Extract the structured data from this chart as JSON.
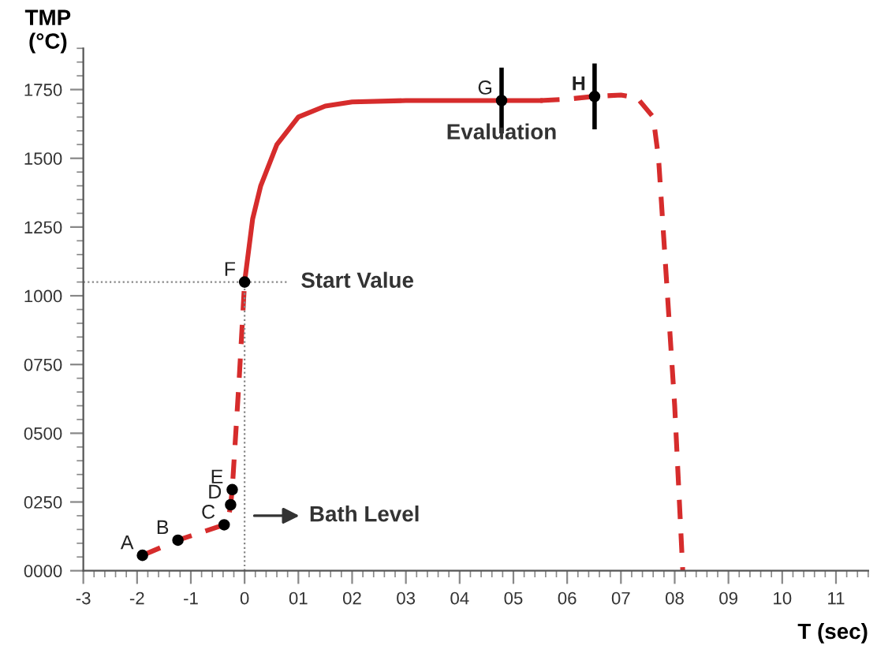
{
  "chart_data": {
    "type": "line",
    "xlabel": "T (sec)",
    "ylabel": "TMP\n(°C)",
    "xlim": [
      -3,
      11.6
    ],
    "ylim": [
      0,
      1900
    ],
    "xticks": [
      -3,
      -2,
      -1,
      0,
      {
        "value": 1,
        "label": "01"
      },
      {
        "value": 2,
        "label": "02"
      },
      {
        "value": 3,
        "label": "03"
      },
      {
        "value": 4,
        "label": "04"
      },
      {
        "value": 5,
        "label": "05"
      },
      {
        "value": 6,
        "label": "06"
      },
      {
        "value": 7,
        "label": "07"
      },
      {
        "value": 8,
        "label": "08"
      },
      {
        "value": 9,
        "label": "09"
      },
      10,
      11
    ],
    "yticks": [
      {
        "value": 0,
        "label": "0000"
      },
      {
        "value": 250,
        "label": "0250"
      },
      {
        "value": 500,
        "label": "0500"
      },
      {
        "value": 750,
        "label": "0750"
      },
      1000,
      1250,
      1500,
      1750
    ],
    "grid": false,
    "series": [
      {
        "color": "#d62c2c",
        "line_style": "dashed",
        "marker": "none",
        "x": [
          -1.9,
          -1.24,
          -0.38,
          -0.3,
          -0.26,
          -0.23,
          -0.1,
          0
        ],
        "values": [
          56,
          111,
          167,
          190,
          240,
          295,
          700,
          1050
        ]
      },
      {
        "color": "#d62c2c",
        "line_style": "solid",
        "marker": "none",
        "x": [
          0,
          0.15,
          0.3,
          0.6,
          1,
          1.5,
          2,
          3,
          4,
          5,
          5.5
        ],
        "values": [
          1050,
          1280,
          1400,
          1550,
          1650,
          1690,
          1705,
          1710,
          1710,
          1710,
          1710
        ]
      },
      {
        "color": "#d62c2c",
        "line_style": "dashed",
        "marker": "none",
        "x": [
          5.5,
          6,
          6.5,
          7,
          7.3,
          7.6,
          7.7,
          7.8,
          8,
          8.15
        ],
        "values": [
          1710,
          1715,
          1725,
          1730,
          1720,
          1650,
          1500,
          1200,
          600,
          0
        ]
      },
      {
        "color": "#888888",
        "line_style": "dotted",
        "marker": "none",
        "x": [
          -3,
          0.8
        ],
        "values": [
          1050,
          1050
        ]
      },
      {
        "color": "#888888",
        "line_style": "dotted",
        "marker": "none",
        "x": [
          0,
          0
        ],
        "values": [
          0,
          1050
        ]
      },
      {
        "type": "scatter",
        "color": "#000000",
        "marker": "circle",
        "x": [
          -1.9,
          -1.24,
          -0.38,
          -0.26,
          -0.23,
          0
        ],
        "values": [
          56,
          111,
          167,
          240,
          295,
          1050
        ]
      },
      {
        "type": "scatter",
        "color": "#000000",
        "marker": "circle",
        "x": [
          4.78,
          6.51
        ],
        "values": [
          1710,
          1725
        ],
        "errors": [
          120,
          120
        ]
      }
    ],
    "annotations": [
      {
        "text": "A",
        "x": -1.9,
        "y": 56
      },
      {
        "text": "B",
        "x": -1.24,
        "y": 111
      },
      {
        "text": "C",
        "x": -0.38,
        "y": 167
      },
      {
        "text": "D",
        "x": -0.26,
        "y": 240
      },
      {
        "text": "E",
        "x": -0.23,
        "y": 295
      },
      {
        "text": "F",
        "x": 0,
        "y": 1050
      },
      {
        "text": "G",
        "x": 4.78,
        "y": 1710
      },
      {
        "text": "H",
        "x": 6.51,
        "y": 1725
      },
      {
        "text": "Start Value",
        "x": 0.8,
        "y": 1050
      },
      {
        "text": "Bath Level",
        "x": 0.1,
        "y": 200
      },
      {
        "text": "Evaluation",
        "x": 4.78,
        "y": 1590
      }
    ]
  }
}
